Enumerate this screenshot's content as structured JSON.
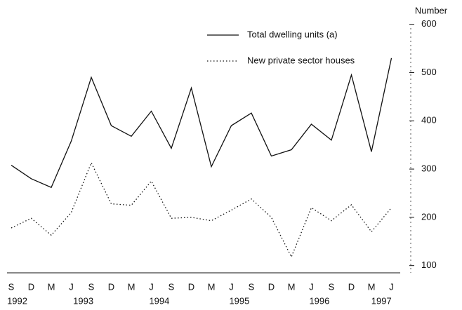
{
  "chart_data": {
    "type": "line",
    "y_axis_label": "Number",
    "categories": [
      "S",
      "D",
      "M",
      "J",
      "S",
      "D",
      "M",
      "J",
      "S",
      "D",
      "M",
      "J",
      "S",
      "D",
      "M",
      "J",
      "S",
      "D",
      "M",
      "J"
    ],
    "year_labels": [
      "1992",
      "1993",
      "1994",
      "1995",
      "1996",
      "1997"
    ],
    "series": [
      {
        "name": "Total dwelling units (a)",
        "color": "#111111",
        "dash": "solid",
        "values": [
          308,
          280,
          262,
          358,
          490,
          390,
          368,
          420,
          343,
          468,
          305,
          390,
          416,
          327,
          340,
          393,
          360,
          495,
          336,
          530
        ]
      },
      {
        "name": "New private sector houses",
        "color": "#111111",
        "dash": "dotted",
        "values": [
          178,
          198,
          163,
          210,
          313,
          228,
          225,
          275,
          198,
          200,
          193,
          215,
          238,
          200,
          118,
          220,
          193,
          226,
          170,
          220
        ]
      }
    ],
    "ylim": [
      85,
      630
    ],
    "yticks": [
      100,
      200,
      300,
      400,
      500,
      600
    ]
  }
}
